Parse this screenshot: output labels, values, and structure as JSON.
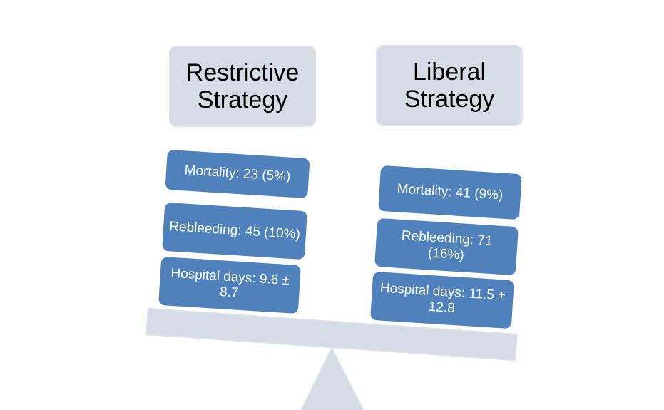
{
  "left": {
    "title": "Restrictive Strategy",
    "items": [
      "Mortality: 23 (5%)",
      "Rebleeding: 45 (10%)",
      "Hospital days: 9.6 ± 8.7"
    ]
  },
  "right": {
    "title": "Liberal Strategy",
    "items": [
      "Mortality: 41 (9%)",
      "Rebleeding: 71 (16%)",
      "Hospital days: 11.5 ± 12.8"
    ]
  },
  "colors": {
    "outcome_box": "#4f81bd",
    "header_and_scale": "#d6dce6"
  }
}
